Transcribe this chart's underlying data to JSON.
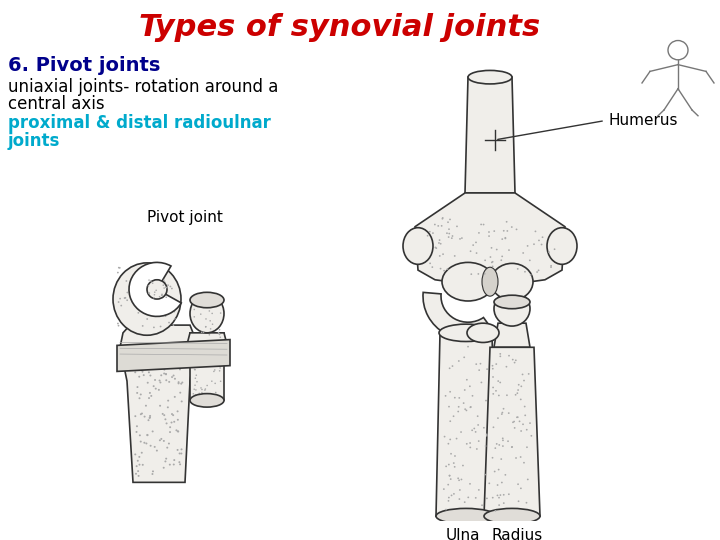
{
  "title": "Types of synovial joints",
  "title_color": "#CC0000",
  "title_fontsize": 22,
  "heading": "6. Pivot joints",
  "heading_color": "#00008B",
  "heading_fontsize": 14,
  "line1": "uniaxial joints- rotation around a",
  "line2": "central axis",
  "body_color": "#000000",
  "body_fontsize": 12,
  "line3": "proximal & distal radioulnar",
  "line4": "joints",
  "highlight_color": "#00AACC",
  "highlight_fontsize": 12,
  "bg_color": "#FFFFFF",
  "label_pivot": "Pivot joint",
  "label_humerus": "Humerus",
  "label_ulna": "Ulna",
  "label_radius": "Radius",
  "lc": "#333333",
  "lw": 1.2,
  "fc_bone": "#f0eeea",
  "fc_bone2": "#e0ddd8"
}
